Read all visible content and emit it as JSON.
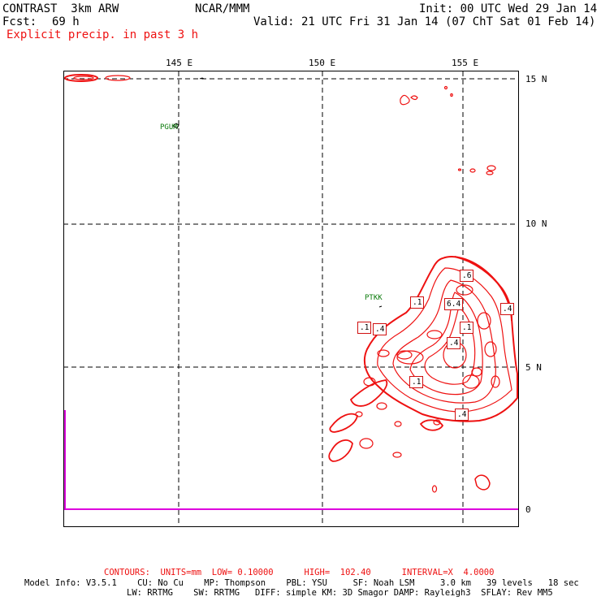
{
  "header": {
    "model": "CONTRAST  3km ARW",
    "center": "NCAR/MMM",
    "init": "Init: 00 UTC Wed 29 Jan 14",
    "fcst_label": "Fcst:",
    "fcst_value": "69 h",
    "valid": "Valid: 21 UTC Fri 31 Jan 14 (07 ChT Sat 01 Feb 14)",
    "field": "Explicit precip. in past 3 h"
  },
  "map": {
    "lon_labels": [
      "145 E",
      "150 E",
      "155 E"
    ],
    "lat_labels": [
      "15 N",
      "10 N",
      "5 N",
      "0"
    ],
    "stations": [
      "PGUM",
      "PTKK"
    ],
    "contour_labels": [
      ".6",
      "6.4",
      ".4",
      ".1",
      ".1",
      ".4",
      ".1",
      ".4",
      ".1",
      ".4"
    ],
    "colors": {
      "contour": "#ee1111",
      "station": "#0a7a0a",
      "boundary": "#dd00dd",
      "grid": "#000000"
    }
  },
  "footer": {
    "contours": "CONTOURS:  UNITS=mm  LOW= 0.10000      HIGH=  102.40      INTERVAL=X  4.0000",
    "model_info": "Model Info: V3.5.1    CU: No Cu    MP: Thompson    PBL: YSU     SF: Noah LSM     3.0 km   39 levels   18 sec",
    "model_info_2": "LW: RRTMG    SW: RRTMG   DIFF: simple KM: 3D Smagor DAMP: Rayleigh3  SFLAY: Rev MM5"
  }
}
